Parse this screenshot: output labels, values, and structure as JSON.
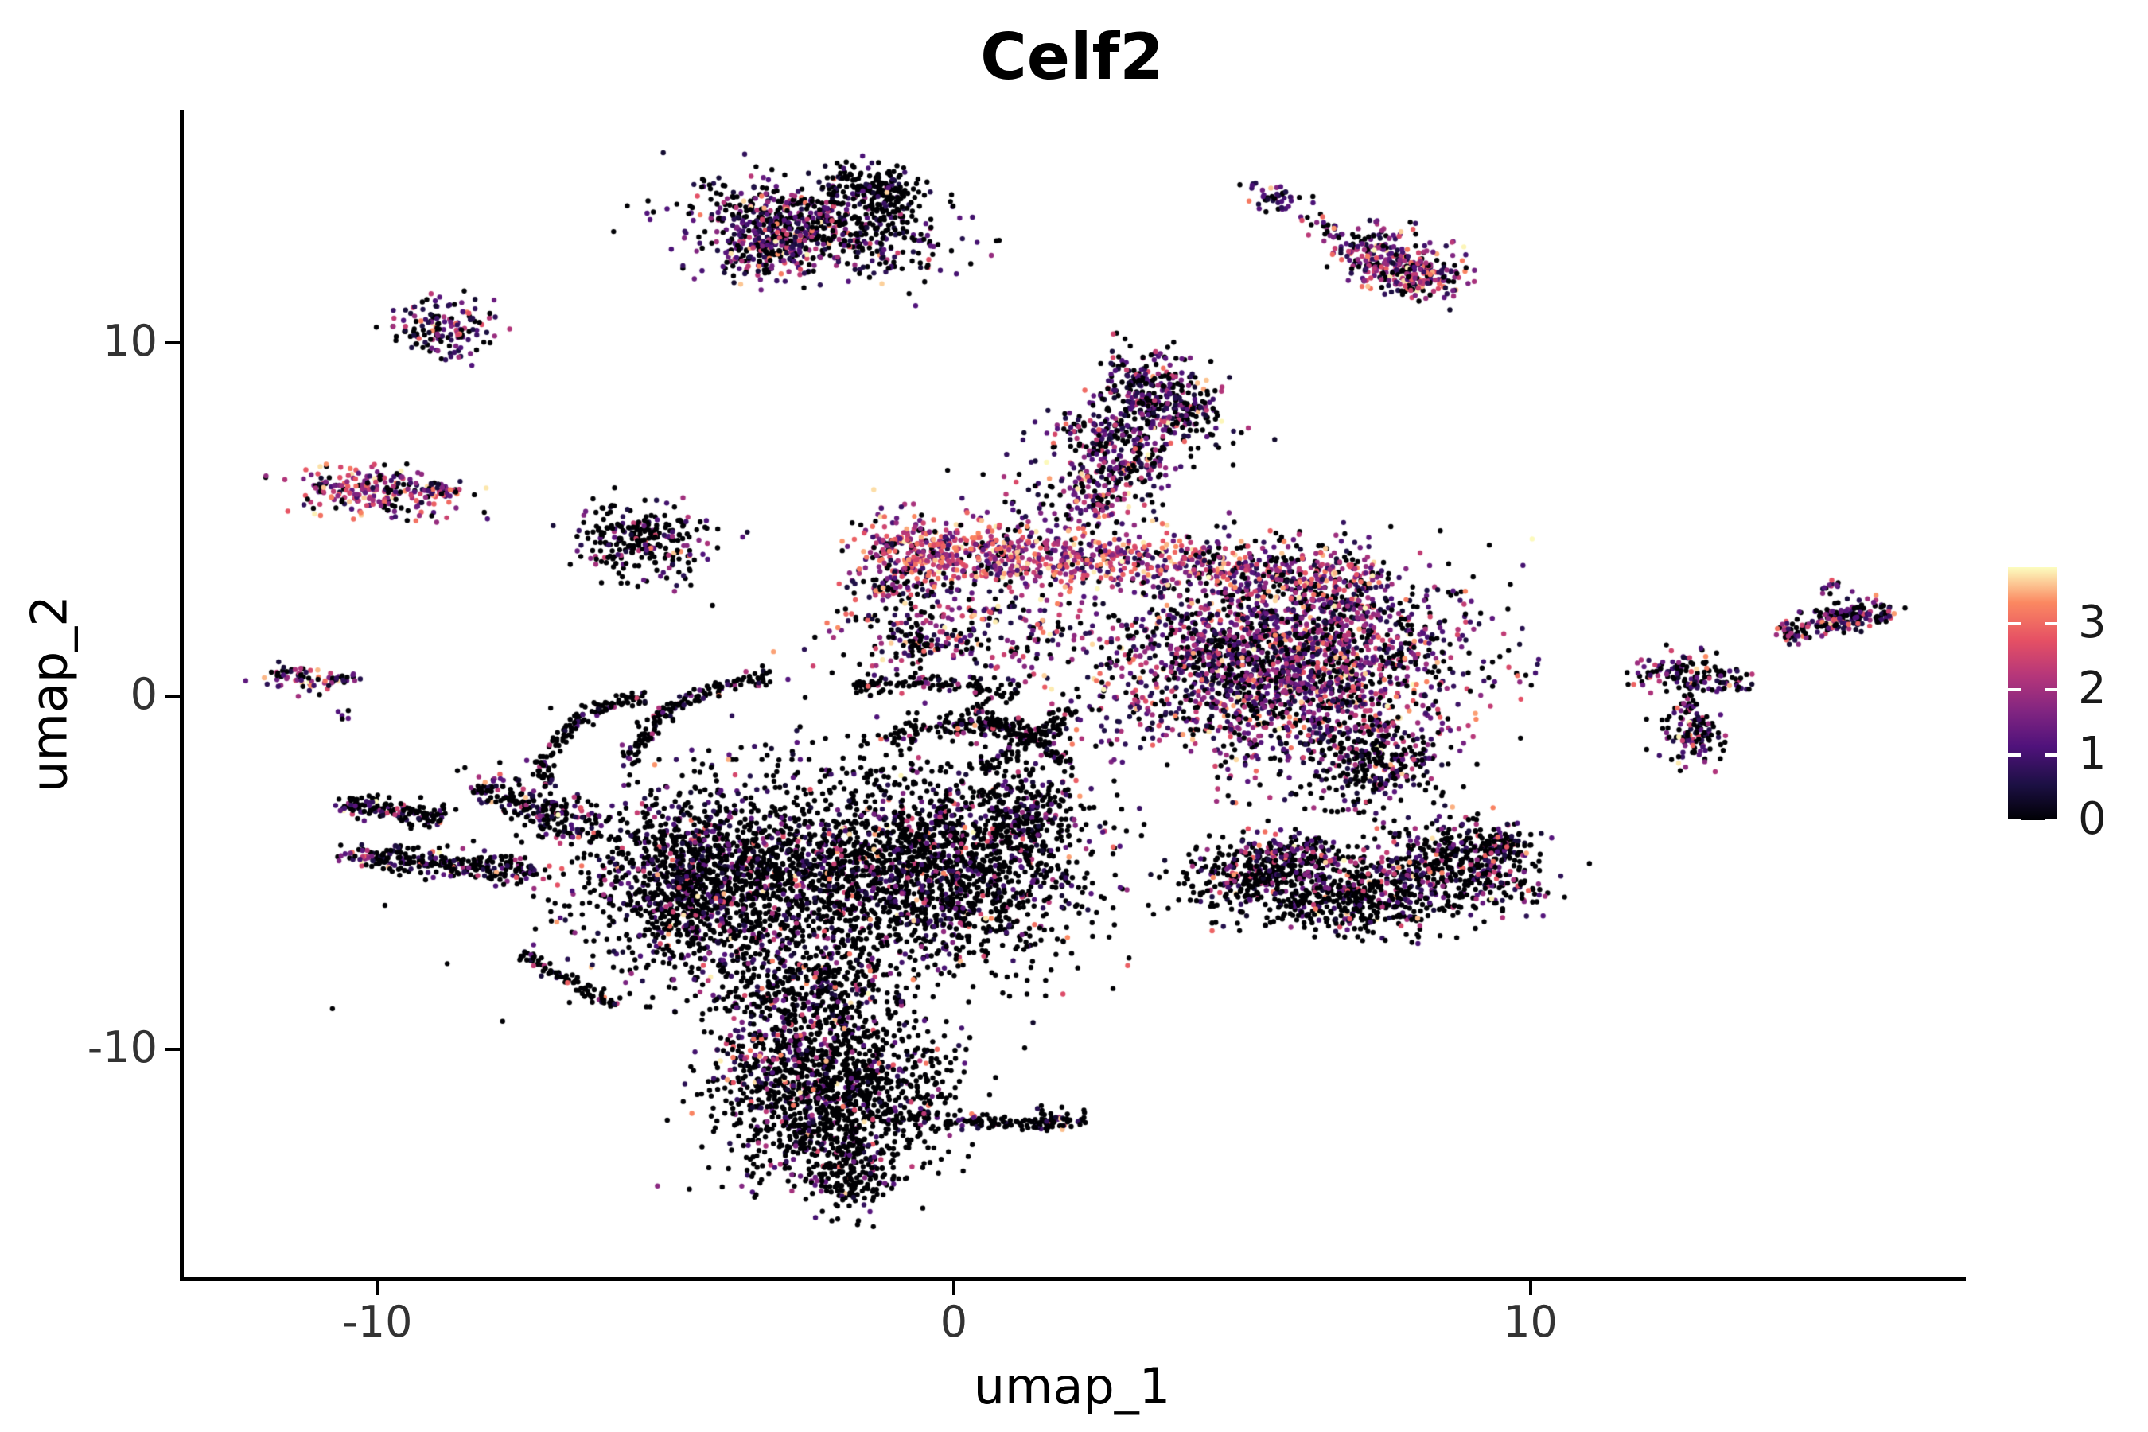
{
  "chart_data": {
    "type": "scatter",
    "title": "Celf2",
    "xlabel": "umap_1",
    "ylabel": "umap_2",
    "xlim": [
      -13.4,
      17.5
    ],
    "ylim": [
      -16.45,
      16.55
    ],
    "x_ticks": [
      -10,
      0,
      10
    ],
    "y_ticks": [
      -10,
      0,
      10
    ],
    "grid": false,
    "legend_position": "right",
    "point_radius_px": 3.2,
    "axis_color": "#000000",
    "tick_label_color": "#333333",
    "colorbar": {
      "ticks": [
        0,
        1,
        2,
        3
      ],
      "domain": [
        0,
        3.87
      ],
      "colormap": "magma",
      "stops": [
        [
          0.0,
          "#000004"
        ],
        [
          0.14,
          "#1c1044"
        ],
        [
          0.29,
          "#4f127b"
        ],
        [
          0.43,
          "#812581"
        ],
        [
          0.57,
          "#b5367a"
        ],
        [
          0.71,
          "#e55064"
        ],
        [
          0.86,
          "#fb8861"
        ],
        [
          1.0,
          "#fcfdbf"
        ]
      ]
    },
    "expression_bins": {
      "zero": 0,
      "low": [
        0.3,
        1.3
      ],
      "mid": [
        1.3,
        2.6
      ],
      "high": [
        2.6,
        3.87
      ]
    },
    "seed": 20240601,
    "clusters": [
      {
        "name": "top-center-main",
        "type": "gauss",
        "cx": -2.45,
        "cy": 13.35,
        "sx": 1.15,
        "sy": 0.6,
        "angle": -18,
        "n": 650,
        "mix": [
          0.5,
          0.3,
          0.16,
          0.04
        ]
      },
      {
        "name": "top-center-tip",
        "type": "gauss",
        "cx": -1.35,
        "cy": 14.35,
        "sx": 0.5,
        "sy": 0.32,
        "angle": -30,
        "n": 200,
        "mix": [
          0.75,
          0.2,
          0.04,
          0.01
        ]
      },
      {
        "name": "top-center-left",
        "type": "gauss",
        "cx": -3.3,
        "cy": 12.55,
        "sx": 0.5,
        "sy": 0.45,
        "angle": 0,
        "n": 180,
        "mix": [
          0.35,
          0.3,
          0.25,
          0.1
        ]
      },
      {
        "name": "upper-left-small",
        "type": "gauss",
        "cx": -8.85,
        "cy": 10.35,
        "sx": 0.42,
        "sy": 0.5,
        "angle": 0,
        "n": 150,
        "mix": [
          0.42,
          0.33,
          0.2,
          0.05
        ]
      },
      {
        "name": "top-right-knot",
        "type": "gauss",
        "cx": 5.62,
        "cy": 14.05,
        "sx": 0.3,
        "sy": 0.16,
        "angle": -35,
        "n": 45,
        "mix": [
          0.3,
          0.45,
          0.2,
          0.05
        ]
      },
      {
        "name": "top-right-chain",
        "type": "line",
        "x1": 6.05,
        "y1": 13.55,
        "x2": 6.9,
        "y2": 12.85,
        "w": 0.12,
        "n": 25,
        "mix": [
          0.2,
          0.3,
          0.35,
          0.15
        ]
      },
      {
        "name": "top-right-band",
        "type": "line",
        "x1": 6.9,
        "y1": 12.9,
        "x2": 8.35,
        "y2": 11.75,
        "w": 0.38,
        "n": 240,
        "mix": [
          0.22,
          0.26,
          0.36,
          0.16
        ]
      },
      {
        "name": "top-right-band-east",
        "type": "gauss",
        "cx": 8.0,
        "cy": 11.95,
        "sx": 0.45,
        "sy": 0.35,
        "angle": -30,
        "n": 120,
        "mix": [
          0.22,
          0.26,
          0.36,
          0.16
        ]
      },
      {
        "name": "left-pink",
        "type": "gauss",
        "cx": -9.95,
        "cy": 5.8,
        "sx": 0.72,
        "sy": 0.33,
        "angle": -6,
        "n": 230,
        "mix": [
          0.17,
          0.2,
          0.4,
          0.23
        ]
      },
      {
        "name": "left-pink-tail",
        "type": "line",
        "x1": -9.2,
        "y1": 5.9,
        "x2": -8.55,
        "y2": 5.75,
        "w": 0.12,
        "n": 30,
        "mix": [
          0.2,
          0.25,
          0.4,
          0.15
        ]
      },
      {
        "name": "left-dark-small",
        "type": "gauss",
        "cx": -5.55,
        "cy": 4.35,
        "sx": 0.5,
        "sy": 0.55,
        "angle": 0,
        "n": 220,
        "mix": [
          0.75,
          0.14,
          0.08,
          0.03
        ]
      },
      {
        "name": "left-dark-satellites",
        "type": "gauss",
        "cx": -4.65,
        "cy": 4.1,
        "sx": 0.45,
        "sy": 0.55,
        "angle": 0,
        "n": 45,
        "mix": [
          0.25,
          0.3,
          0.3,
          0.15
        ]
      },
      {
        "name": "tiny-left-west",
        "type": "gauss",
        "cx": -11.35,
        "cy": 0.5,
        "sx": 0.35,
        "sy": 0.2,
        "angle": -8,
        "n": 55,
        "mix": [
          0.28,
          0.22,
          0.3,
          0.2
        ]
      },
      {
        "name": "tiny-left-chain",
        "type": "line",
        "x1": -10.85,
        "y1": 0.45,
        "x2": -10.35,
        "y2": 0.5,
        "w": 0.1,
        "n": 22,
        "mix": [
          0.25,
          0.55,
          0.15,
          0.05
        ]
      },
      {
        "name": "tiny-left-pair",
        "type": "gauss",
        "cx": -10.6,
        "cy": -0.5,
        "sx": 0.08,
        "sy": 0.12,
        "angle": 45,
        "n": 5,
        "mix": [
          0.1,
          0.7,
          0.2,
          0
        ]
      },
      {
        "name": "central-top-knot",
        "type": "gauss",
        "cx": 3.55,
        "cy": 8.3,
        "sx": 0.55,
        "sy": 0.75,
        "angle": 20,
        "n": 430,
        "mix": [
          0.44,
          0.38,
          0.15,
          0.03
        ]
      },
      {
        "name": "central-knot-west",
        "type": "gauss",
        "cx": 2.6,
        "cy": 7.4,
        "sx": 0.5,
        "sy": 0.4,
        "angle": 0,
        "n": 120,
        "mix": [
          0.4,
          0.35,
          0.2,
          0.05
        ]
      },
      {
        "name": "central-neck",
        "type": "line",
        "x1": 3.2,
        "y1": 6.9,
        "x2": 2.3,
        "y2": 5.2,
        "w": 0.4,
        "n": 200,
        "mix": [
          0.3,
          0.3,
          0.3,
          0.1
        ]
      },
      {
        "name": "central-bridge-sparse",
        "type": "gauss",
        "cx": 1.8,
        "cy": 5.6,
        "sx": 0.9,
        "sy": 0.8,
        "angle": 0,
        "n": 90,
        "mix": [
          0.3,
          0.3,
          0.3,
          0.1
        ]
      },
      {
        "name": "central-main-mass",
        "type": "gauss",
        "cx": 5.75,
        "cy": 0.95,
        "sx": 1.55,
        "sy": 1.45,
        "angle": -8,
        "n": 2500,
        "mix": [
          0.33,
          0.28,
          0.29,
          0.1
        ]
      },
      {
        "name": "central-mass-south-dark",
        "type": "gauss",
        "cx": 7.3,
        "cy": -1.9,
        "sx": 0.6,
        "sy": 0.55,
        "angle": -20,
        "n": 280,
        "mix": [
          0.6,
          0.25,
          0.12,
          0.03
        ]
      },
      {
        "name": "central-left-wing",
        "type": "gauss",
        "cx": 0.2,
        "cy": 1.9,
        "sx": 1.25,
        "sy": 1.0,
        "angle": 0,
        "n": 330,
        "mix": [
          0.3,
          0.25,
          0.3,
          0.15
        ]
      },
      {
        "name": "central-left-spur",
        "type": "gauss",
        "cx": -1.0,
        "cy": 3.6,
        "sx": 0.42,
        "sy": 0.8,
        "angle": 0,
        "n": 140,
        "mix": [
          0.25,
          0.25,
          0.35,
          0.15
        ]
      },
      {
        "name": "central-left-knot",
        "type": "gauss",
        "cx": -0.65,
        "cy": 1.5,
        "sx": 0.2,
        "sy": 0.3,
        "angle": 0,
        "n": 60,
        "mix": [
          0.7,
          0.2,
          0.08,
          0.02
        ]
      },
      {
        "name": "central-bright-band-west",
        "type": "line",
        "x1": -1.3,
        "y1": 4.25,
        "x2": 2.7,
        "y2": 3.75,
        "w": 0.42,
        "n": 560,
        "mix": [
          0.08,
          0.14,
          0.42,
          0.36
        ]
      },
      {
        "name": "central-bright-band-east",
        "type": "line",
        "x1": 2.7,
        "y1": 3.85,
        "x2": 7.3,
        "y2": 3.35,
        "w": 0.4,
        "n": 420,
        "mix": [
          0.14,
          0.2,
          0.4,
          0.26
        ]
      },
      {
        "name": "right-y-hub",
        "type": "gauss",
        "cx": 12.6,
        "cy": 0.75,
        "sx": 0.38,
        "sy": 0.3,
        "angle": 0,
        "n": 95,
        "mix": [
          0.48,
          0.27,
          0.17,
          0.08
        ]
      },
      {
        "name": "right-y-east-arm",
        "type": "gauss",
        "cx": 13.45,
        "cy": 0.45,
        "sx": 0.25,
        "sy": 0.2,
        "angle": 0,
        "n": 40,
        "mix": [
          0.45,
          0.3,
          0.15,
          0.1
        ]
      },
      {
        "name": "right-y-chain",
        "type": "line",
        "x1": 12.7,
        "y1": 0.35,
        "x2": 12.8,
        "y2": -0.75,
        "w": 0.1,
        "n": 25,
        "mix": [
          0.5,
          0.3,
          0.15,
          0.05
        ]
      },
      {
        "name": "right-y-south",
        "type": "gauss",
        "cx": 12.8,
        "cy": -1.2,
        "sx": 0.28,
        "sy": 0.45,
        "angle": 0,
        "n": 110,
        "mix": [
          0.55,
          0.25,
          0.13,
          0.07
        ]
      },
      {
        "name": "right-band",
        "type": "line",
        "x1": 14.35,
        "y1": 1.75,
        "x2": 15.6,
        "y2": 2.3,
        "w": 0.16,
        "n": 120,
        "mix": [
          0.45,
          0.3,
          0.17,
          0.08
        ]
      },
      {
        "name": "right-band-knot",
        "type": "gauss",
        "cx": 15.75,
        "cy": 2.3,
        "sx": 0.3,
        "sy": 0.25,
        "angle": 20,
        "n": 90,
        "mix": [
          0.4,
          0.3,
          0.2,
          0.1
        ]
      },
      {
        "name": "right-band-topknot",
        "type": "gauss",
        "cx": 15.25,
        "cy": 3.1,
        "sx": 0.12,
        "sy": 0.12,
        "angle": 0,
        "n": 12,
        "mix": [
          0.3,
          0.4,
          0.2,
          0.1
        ]
      },
      {
        "name": "crescent-west",
        "type": "gauss",
        "cx": 5.4,
        "cy": -4.9,
        "sx": 0.7,
        "sy": 0.45,
        "angle": 25,
        "n": 380,
        "mix": [
          0.72,
          0.15,
          0.1,
          0.03
        ]
      },
      {
        "name": "crescent-center",
        "type": "gauss",
        "cx": 7.0,
        "cy": -5.7,
        "sx": 0.9,
        "sy": 0.5,
        "angle": 0,
        "n": 520,
        "mix": [
          0.74,
          0.14,
          0.09,
          0.03
        ]
      },
      {
        "name": "crescent-east",
        "type": "gauss",
        "cx": 8.9,
        "cy": -4.7,
        "sx": 0.7,
        "sy": 0.5,
        "angle": -35,
        "n": 420,
        "mix": [
          0.7,
          0.16,
          0.1,
          0.04
        ]
      },
      {
        "name": "crescent-top-edge",
        "type": "line",
        "x1": 4.9,
        "y1": -4.2,
        "x2": 8.2,
        "y2": -4.9,
        "w": 0.25,
        "n": 120,
        "mix": [
          0.25,
          0.3,
          0.3,
          0.15
        ]
      },
      {
        "name": "crescent-east-tip",
        "type": "gauss",
        "cx": 9.55,
        "cy": -4.15,
        "sx": 0.2,
        "sy": 0.2,
        "angle": 0,
        "n": 60,
        "mix": [
          0.5,
          0.2,
          0.2,
          0.1
        ]
      },
      {
        "name": "bl-left-arm",
        "type": "line",
        "x1": -10.1,
        "y1": -4.55,
        "x2": -7.3,
        "y2": -5.0,
        "w": 0.18,
        "n": 260,
        "mix": [
          0.66,
          0.22,
          0.09,
          0.03
        ]
      },
      {
        "name": "bl-left-arm-tip",
        "type": "gauss",
        "cx": -10.35,
        "cy": -4.5,
        "sx": 0.15,
        "sy": 0.12,
        "angle": 0,
        "n": 25,
        "mix": [
          0.2,
          0.3,
          0.3,
          0.2
        ]
      },
      {
        "name": "bl-upper-arm",
        "type": "line",
        "x1": -10.6,
        "y1": -3.05,
        "x2": -8.9,
        "y2": -3.5,
        "w": 0.15,
        "n": 150,
        "mix": [
          0.7,
          0.2,
          0.08,
          0.02
        ]
      },
      {
        "name": "bl-arc-1",
        "type": "arc",
        "cx": -2.9,
        "cy": -2.2,
        "r": 2.7,
        "a0": 95,
        "a1": 175,
        "w": 0.1,
        "n": 150,
        "mix": [
          0.8,
          0.14,
          0.05,
          0.01
        ]
      },
      {
        "name": "bl-arc-2",
        "type": "arc",
        "cx": -4.9,
        "cy": -2.2,
        "r": 2.2,
        "a0": 100,
        "a1": 190,
        "w": 0.1,
        "n": 130,
        "mix": [
          0.8,
          0.14,
          0.05,
          0.01
        ]
      },
      {
        "name": "bl-band-diagonal",
        "type": "line",
        "x1": -8.2,
        "y1": -2.5,
        "x2": -6.2,
        "y2": -3.9,
        "w": 0.3,
        "n": 220,
        "mix": [
          0.62,
          0.25,
          0.1,
          0.03
        ]
      },
      {
        "name": "bl-chord-thin",
        "type": "line",
        "x1": -7.5,
        "y1": -7.3,
        "x2": -5.9,
        "y2": -8.8,
        "w": 0.08,
        "n": 90,
        "mix": [
          0.85,
          0.1,
          0.04,
          0.01
        ]
      },
      {
        "name": "bl-mid-mass",
        "type": "gauss",
        "cx": -4.35,
        "cy": -5.3,
        "sx": 1.05,
        "sy": 1.25,
        "angle": 0,
        "n": 1500,
        "mix": [
          0.72,
          0.17,
          0.08,
          0.03
        ]
      },
      {
        "name": "bl-right-mass",
        "type": "gauss",
        "cx": -0.6,
        "cy": -4.9,
        "sx": 1.45,
        "sy": 1.4,
        "angle": 10,
        "n": 2100,
        "mix": [
          0.73,
          0.16,
          0.08,
          0.03
        ]
      },
      {
        "name": "bl-right-spur",
        "type": "gauss",
        "cx": 1.3,
        "cy": -3.4,
        "sx": 0.5,
        "sy": 0.7,
        "angle": 0,
        "n": 220,
        "mix": [
          0.75,
          0.15,
          0.08,
          0.02
        ]
      },
      {
        "name": "bl-top-arc-1",
        "type": "arc",
        "cx": 0.3,
        "cy": -3.4,
        "r": 2.6,
        "a0": 55,
        "a1": 125,
        "w": 0.15,
        "n": 160,
        "mix": [
          0.8,
          0.13,
          0.05,
          0.02
        ]
      },
      {
        "name": "bl-top-arc-2",
        "type": "arc",
        "cx": -0.6,
        "cy": -3.0,
        "r": 3.4,
        "a0": 60,
        "a1": 110,
        "w": 0.12,
        "n": 110,
        "mix": [
          0.8,
          0.13,
          0.05,
          0.02
        ]
      },
      {
        "name": "bl-x-fil-1",
        "type": "line",
        "x1": 0.3,
        "y1": -0.35,
        "x2": 2.0,
        "y2": -1.9,
        "w": 0.1,
        "n": 80,
        "mix": [
          0.82,
          0.12,
          0.05,
          0.01
        ]
      },
      {
        "name": "bl-x-fil-2",
        "type": "line",
        "x1": 2.05,
        "y1": -0.4,
        "x2": 0.5,
        "y2": -2.1,
        "w": 0.1,
        "n": 80,
        "mix": [
          0.82,
          0.12,
          0.05,
          0.01
        ]
      },
      {
        "name": "bl-link-mass",
        "type": "gauss",
        "cx": -2.6,
        "cy": -8.3,
        "sx": 0.8,
        "sy": 0.8,
        "angle": 0,
        "n": 400,
        "mix": [
          0.75,
          0.15,
          0.07,
          0.03
        ]
      },
      {
        "name": "bl-halo",
        "type": "gauss",
        "cx": -3.5,
        "cy": -4.5,
        "sx": 2.6,
        "sy": 2.2,
        "angle": 0,
        "n": 220,
        "mix": [
          0.7,
          0.18,
          0.09,
          0.03
        ]
      },
      {
        "name": "bl-triangle",
        "type": "gauss",
        "cx": -2.1,
        "cy": -11.3,
        "sx": 0.95,
        "sy": 1.25,
        "angle": -12,
        "n": 1300,
        "mix": [
          0.78,
          0.13,
          0.07,
          0.02
        ]
      },
      {
        "name": "bl-triangle-sprinkle",
        "type": "gauss",
        "cx": -3.2,
        "cy": -10.2,
        "sx": 0.5,
        "sy": 0.6,
        "angle": 0,
        "n": 130,
        "mix": [
          0.45,
          0.25,
          0.2,
          0.1
        ]
      },
      {
        "name": "bl-bottom-tip",
        "type": "gauss",
        "cx": -1.8,
        "cy": -13.6,
        "sx": 0.35,
        "sy": 0.45,
        "angle": 0,
        "n": 160,
        "mix": [
          0.85,
          0.1,
          0.04,
          0.01
        ]
      },
      {
        "name": "bl-spike",
        "type": "line",
        "x1": -1.0,
        "y1": -11.95,
        "x2": 1.7,
        "y2": -12.15,
        "w": 0.09,
        "n": 110,
        "mix": [
          0.85,
          0.1,
          0.04,
          0.01
        ]
      },
      {
        "name": "bl-spike-knot",
        "type": "gauss",
        "cx": 1.85,
        "cy": -12.05,
        "sx": 0.25,
        "sy": 0.18,
        "angle": 0,
        "n": 45,
        "mix": [
          0.5,
          0.35,
          0.1,
          0.05
        ]
      }
    ]
  }
}
